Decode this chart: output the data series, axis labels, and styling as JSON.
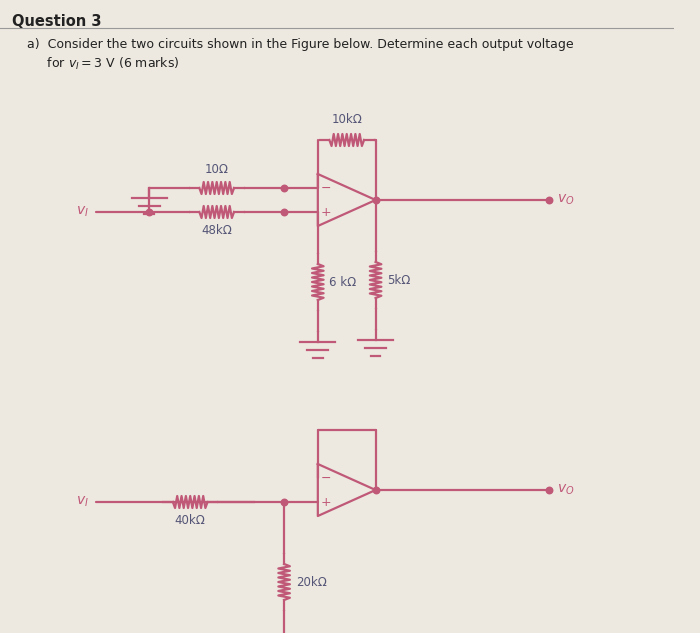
{
  "bg_color": "#ede9e0",
  "circuit_color": "#c05878",
  "text_color": "#222222",
  "label_color": "#555577",
  "title": "Question 3",
  "line1": "a)  Consider the two circuits shown in the Figure below. Determine each output voltage",
  "line2": "     for $v_I = 3$ V (6 marks)",
  "c1": {
    "res1": "10Ω",
    "res2": "48kΩ",
    "res3": "10kΩ",
    "res4": "6 kΩ",
    "res5": "5kΩ",
    "vo": "$v_O$",
    "vi": "$v_I$"
  },
  "c2": {
    "res1": "40kΩ",
    "res2": "20kΩ",
    "vo": "$v_O$",
    "vi": "$v_I$"
  }
}
